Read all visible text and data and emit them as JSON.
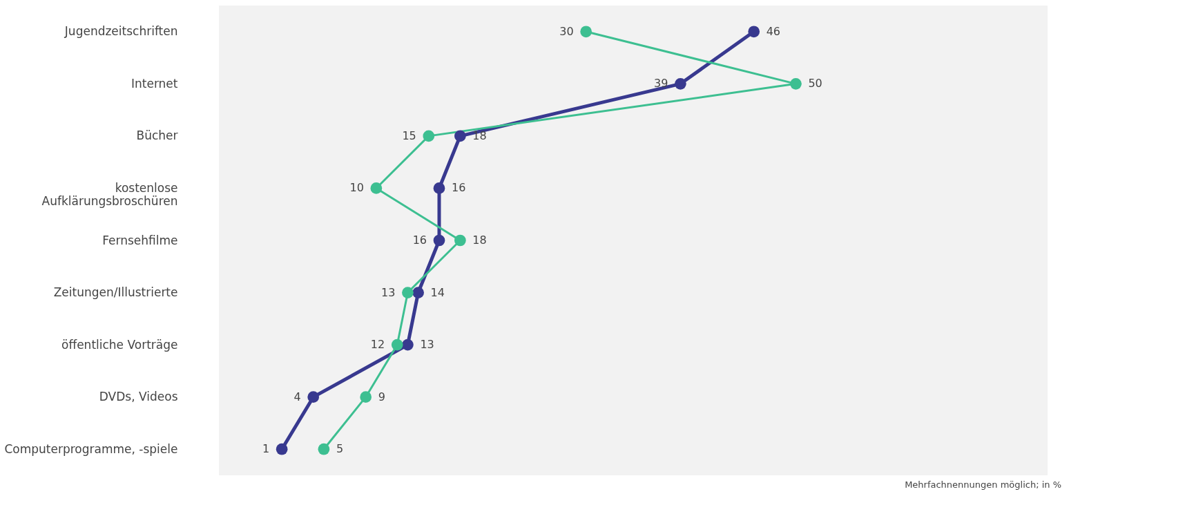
{
  "chart_data": {
    "type": "line",
    "orientation": "horizontal",
    "categories": [
      "Jugendzeitschriften",
      "Internet",
      "Bücher",
      "kostenlose Aufklärungsbroschüren",
      "Fernsehfilme",
      "Zeitungen/Illustrierte",
      "öffentliche Vorträge",
      "DVDs, Videos",
      "Computerprogramme, -spiele"
    ],
    "series": [
      {
        "color": "#38398f",
        "values": [
          46,
          39,
          18,
          16,
          16,
          14,
          13,
          4,
          1
        ]
      },
      {
        "color": "#3dbf91",
        "values": [
          30,
          50,
          15,
          10,
          18,
          13,
          12,
          9,
          5
        ]
      }
    ],
    "xlim": [
      -5,
      74
    ],
    "data_labels": true,
    "marker": "circle",
    "annotations": [
      "Mehrfachnennungen möglich; in %"
    ]
  }
}
